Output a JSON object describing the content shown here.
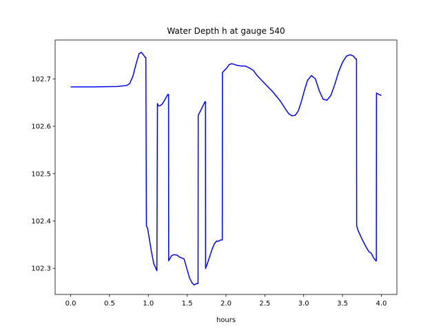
{
  "chart_data": {
    "type": "line",
    "title": "Water Depth h at gauge 540",
    "xlabel": "hours",
    "ylabel": "",
    "xlim": [
      -0.2,
      4.2
    ],
    "ylim": [
      102.245,
      102.782
    ],
    "xticks": [
      0.0,
      0.5,
      1.0,
      1.5,
      2.0,
      2.5,
      3.0,
      3.5,
      4.0
    ],
    "xtick_labels": [
      "0.0",
      "0.5",
      "1.0",
      "1.5",
      "2.0",
      "2.5",
      "3.0",
      "3.5",
      "4.0"
    ],
    "yticks": [
      102.3,
      102.4,
      102.5,
      102.6,
      102.7
    ],
    "ytick_labels": [
      "102.3",
      "102.4",
      "102.5",
      "102.6",
      "102.7"
    ],
    "grid": false,
    "series": [
      {
        "color": "#0000ff",
        "x": [
          0.0,
          0.3,
          0.6,
          0.72,
          0.76,
          0.8,
          0.84,
          0.88,
          0.91,
          0.94,
          0.96,
          0.968,
          0.975,
          0.99,
          1.01,
          1.04,
          1.07,
          1.11,
          1.117,
          1.13,
          1.15,
          1.18,
          1.21,
          1.25,
          1.26,
          1.262,
          1.275,
          1.3,
          1.33,
          1.37,
          1.4,
          1.43,
          1.46,
          1.5,
          1.53,
          1.56,
          1.59,
          1.62,
          1.64,
          1.642,
          1.67,
          1.7,
          1.73,
          1.735,
          1.737,
          1.76,
          1.79,
          1.82,
          1.85,
          1.88,
          1.9,
          1.93,
          1.952,
          1.954,
          1.98,
          2.01,
          2.04,
          2.07,
          2.1,
          2.13,
          2.16,
          2.2,
          2.25,
          2.3,
          2.35,
          2.4,
          2.5,
          2.6,
          2.7,
          2.77,
          2.81,
          2.85,
          2.89,
          2.93,
          2.97,
          3.01,
          3.05,
          3.1,
          3.15,
          3.2,
          3.25,
          3.3,
          3.35,
          3.4,
          3.45,
          3.5,
          3.55,
          3.6,
          3.64,
          3.67,
          3.68,
          3.682,
          3.7,
          3.75,
          3.8,
          3.84,
          3.87,
          3.9,
          3.93,
          3.935,
          3.937,
          3.97,
          4.0
        ],
        "y": [
          102.683,
          102.683,
          102.684,
          102.686,
          102.69,
          102.705,
          102.73,
          102.753,
          102.756,
          102.75,
          102.745,
          102.745,
          102.39,
          102.385,
          102.365,
          102.335,
          102.31,
          102.295,
          102.648,
          102.643,
          102.643,
          102.647,
          102.655,
          102.667,
          102.667,
          102.316,
          102.32,
          102.327,
          102.329,
          102.328,
          102.324,
          102.322,
          102.32,
          102.297,
          102.28,
          102.27,
          102.265,
          102.268,
          102.268,
          102.623,
          102.632,
          102.642,
          102.652,
          102.652,
          102.3,
          102.31,
          102.325,
          102.34,
          102.352,
          102.358,
          102.357,
          102.36,
          102.36,
          102.713,
          102.718,
          102.723,
          102.73,
          102.732,
          102.731,
          102.729,
          102.728,
          102.727,
          102.727,
          102.723,
          102.718,
          102.707,
          102.69,
          102.673,
          102.653,
          102.635,
          102.626,
          102.622,
          102.623,
          102.632,
          102.652,
          102.676,
          102.697,
          102.707,
          102.7,
          102.675,
          102.657,
          102.655,
          102.665,
          102.688,
          102.715,
          102.735,
          102.748,
          102.751,
          102.748,
          102.742,
          102.742,
          102.39,
          102.38,
          102.362,
          102.346,
          102.335,
          102.332,
          102.322,
          102.316,
          102.316,
          102.67,
          102.667,
          102.665
        ]
      }
    ]
  }
}
